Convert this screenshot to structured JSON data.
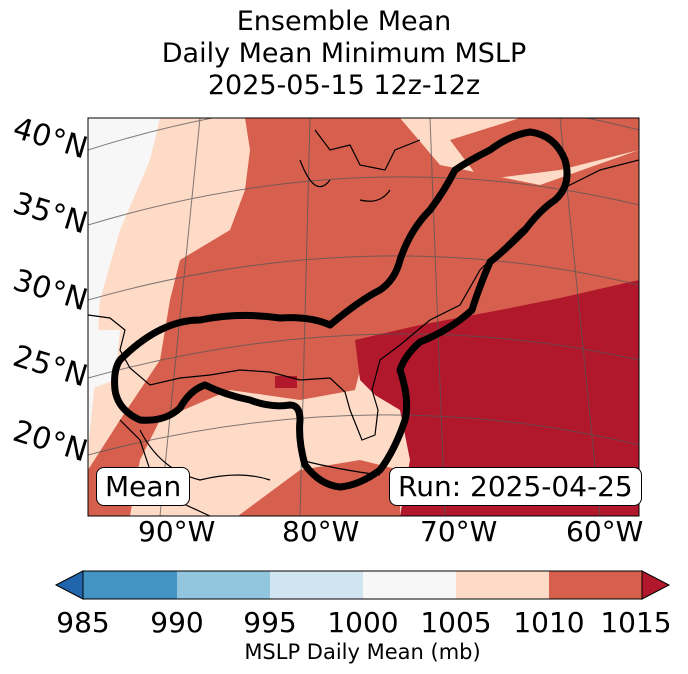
{
  "title": {
    "line1": "Ensemble Mean",
    "line2": "Daily Mean Minimum MSLP",
    "line3": "2025-05-15 12z-12z"
  },
  "map": {
    "lat_labels": [
      "40°N",
      "35°N",
      "30°N",
      "25°N",
      "20°N"
    ],
    "lon_labels": [
      "90°W",
      "80°W",
      "70°W",
      "60°W"
    ],
    "mean_box": "Mean",
    "run_box": "Run: 2025-04-25",
    "contour_color": "#000000",
    "region": "Gulf of Mexico, U.S. East Coast and western Atlantic"
  },
  "colorbar": {
    "ticks": [
      "985",
      "990",
      "995",
      "1000",
      "1005",
      "1010",
      "1015"
    ],
    "colors": [
      "#2166ac",
      "#4393c3",
      "#92c5de",
      "#d1e5f0",
      "#f7f7f7",
      "#fddbc7",
      "#d6604d",
      "#b2182b"
    ],
    "label": "MSLP Daily Mean (mb)"
  }
}
